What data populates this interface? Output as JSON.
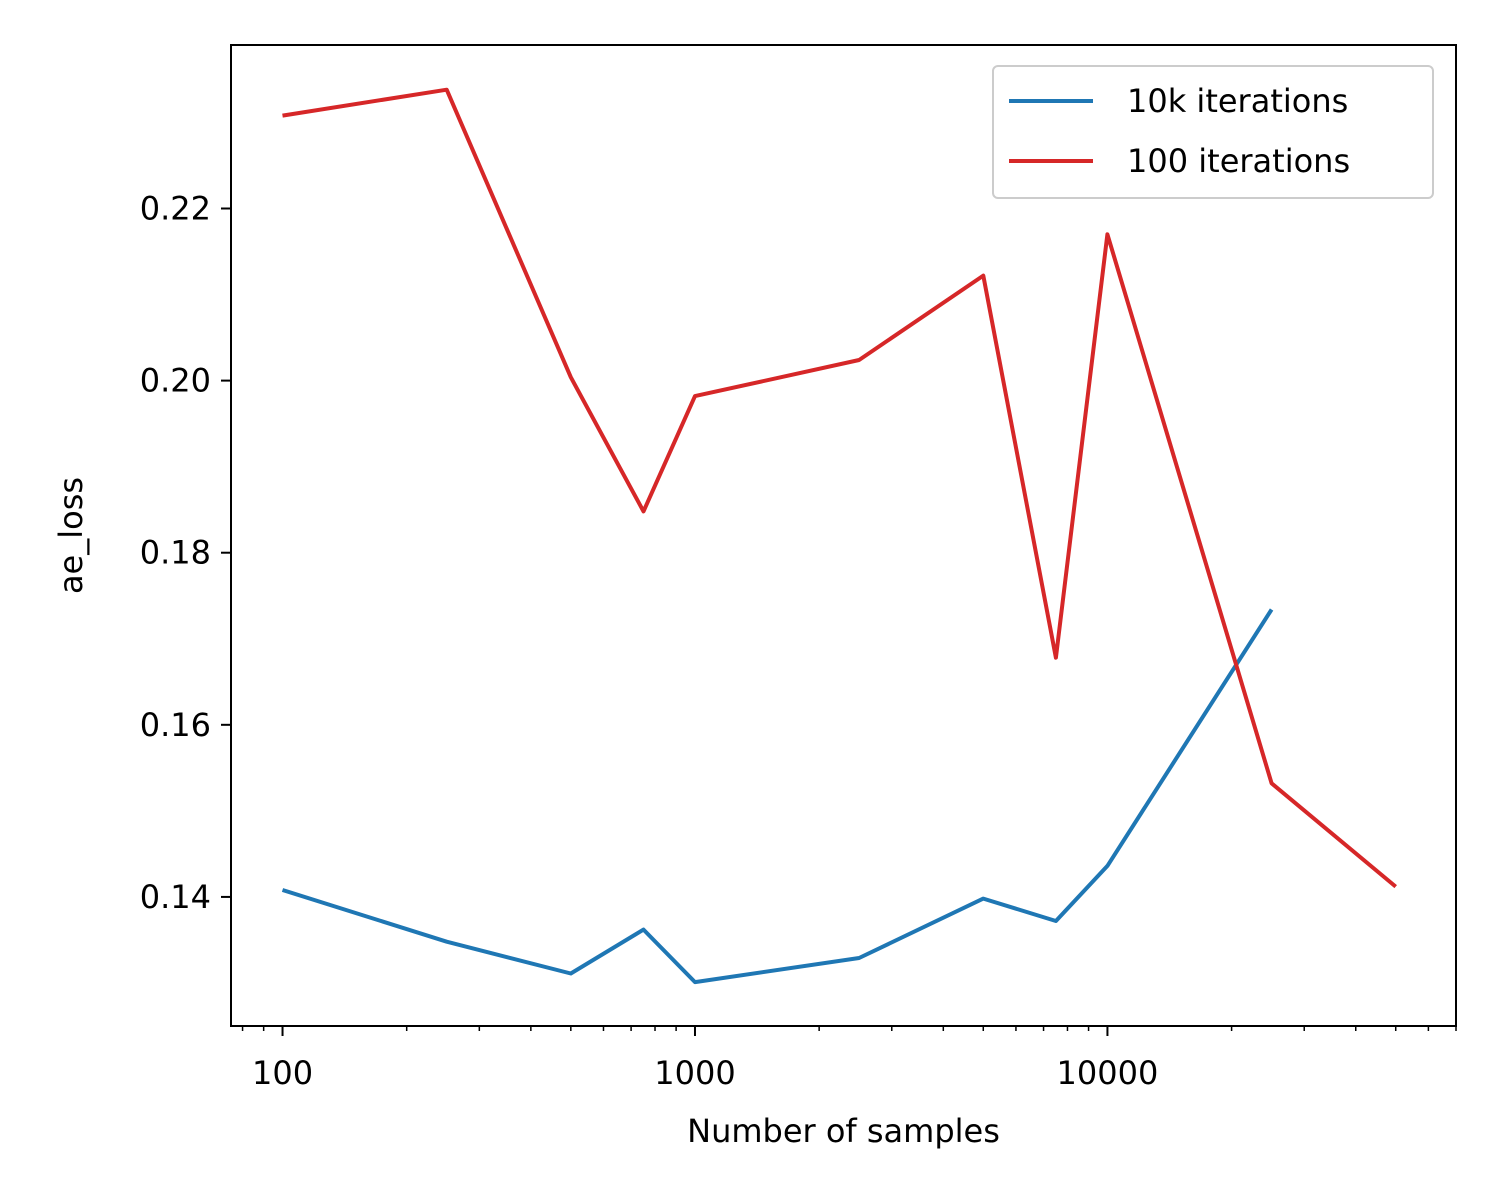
{
  "chart_data": {
    "type": "line",
    "xlabel": "Number of samples",
    "ylabel": "ae_loss",
    "xscale": "log",
    "xlim": [
      75,
      70000
    ],
    "ylim": [
      0.125,
      0.239
    ],
    "xticks": [
      100,
      1000,
      10000
    ],
    "xtick_labels": [
      "100",
      "1000",
      "10000"
    ],
    "yticks": [
      0.14,
      0.16,
      0.18,
      0.2,
      0.22
    ],
    "ytick_labels": [
      "0.14",
      "0.16",
      "0.18",
      "0.20",
      "0.22"
    ],
    "grid": false,
    "legend": {
      "position": "top-right"
    },
    "series": [
      {
        "name": "10k iterations",
        "color": "#1f77b4",
        "x": [
          100,
          250,
          500,
          750,
          1000,
          2500,
          5000,
          7500,
          10000,
          25000
        ],
        "y": [
          0.1408,
          0.1348,
          0.1311,
          0.1362,
          0.1301,
          0.1329,
          0.1398,
          0.1372,
          0.1436,
          0.1734
        ]
      },
      {
        "name": "100 iterations",
        "color": "#d62728",
        "x": [
          100,
          250,
          500,
          750,
          1000,
          2500,
          5000,
          7500,
          10000,
          25000,
          50000
        ],
        "y": [
          0.2308,
          0.2338,
          0.2004,
          0.1848,
          0.1982,
          0.2024,
          0.2122,
          0.1678,
          0.217,
          0.1532,
          0.1412
        ]
      }
    ]
  }
}
